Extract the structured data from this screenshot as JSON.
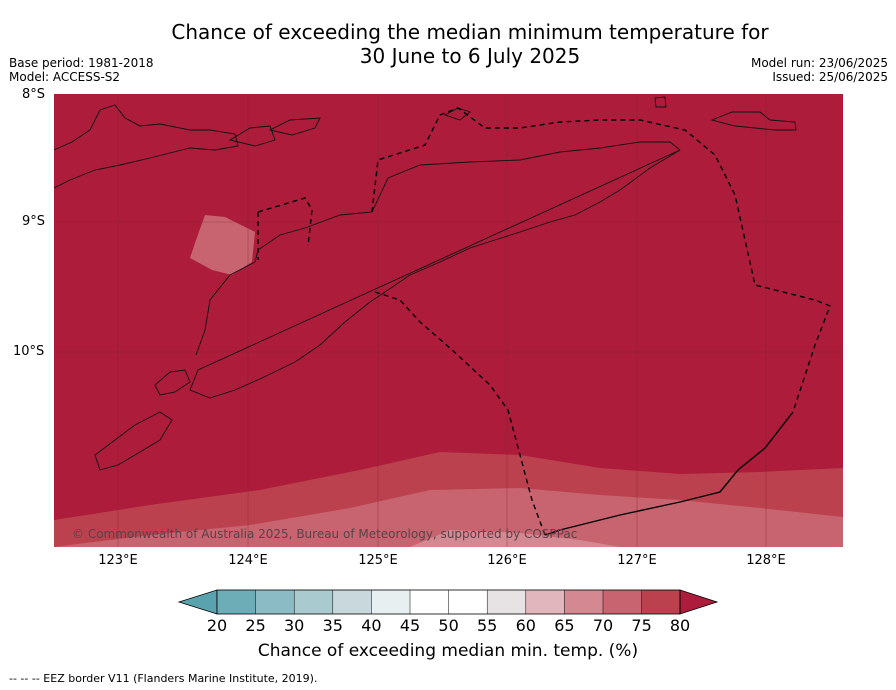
{
  "title": {
    "line1": "Chance of exceeding the median minimum temperature for",
    "line2": "30 June to 6 July 2025"
  },
  "meta": {
    "base_period": "Base period: 1981-2018",
    "model": "Model: ACCESS-S2",
    "model_run": "Model run: 23/06/2025",
    "issued": "Issued: 25/06/2025"
  },
  "map": {
    "lat_labels": [
      "8°S",
      "9°S",
      "10°S"
    ],
    "lon_labels": [
      "123°E",
      "124°E",
      "125°E",
      "126°E",
      "127°E",
      "128°E"
    ],
    "copyright": "© Commonwealth of Australia 2025, Bureau of Meteorology, supported by COSPPac"
  },
  "colorbar": {
    "ticks": [
      "20",
      "25",
      "30",
      "35",
      "40",
      "45",
      "50",
      "55",
      "60",
      "65",
      "70",
      "75",
      "80"
    ],
    "colors": {
      "below_20": "#5aa3ae",
      "20-25": "#6cadb8",
      "25-30": "#8bbcc5",
      "30-35": "#a9cbd0",
      "35-40": "#c8d8dc",
      "40-45": "#e7eff0",
      "45-50": "#ffffff",
      "50-55": "#ffffff",
      "55-60": "#e7e3e4",
      "60-65": "#e2b6bd",
      "65-70": "#d48892",
      "70-75": "#c7646f",
      "75-80": "#bc414f",
      "above_80": "#ad1c3a"
    },
    "label": "Chance of exceeding median min. temp. (%)"
  },
  "footnote": "--  --  -- EEZ border V11 (Flanders Marine Institute, 2019)."
}
